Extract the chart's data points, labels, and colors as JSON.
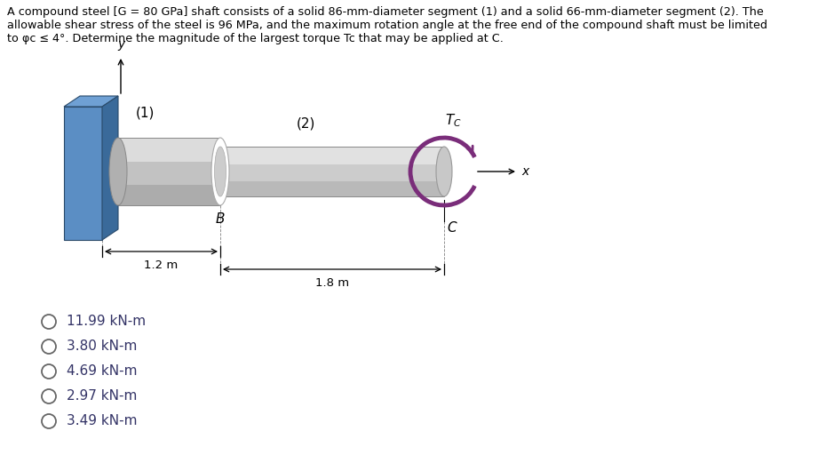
{
  "title_line1": "A compound steel [G = 80 GPa] shaft consists of a solid 86-mm-diameter segment (1) and a solid 66-mm-diameter segment (2). The",
  "title_line2": "allowable shear stress of the steel is 96 MPa, and the maximum rotation angle at the free end of the compound shaft must be limited",
  "title_line3": "to φc ≤ 4°. Determine the magnitude of the largest torque Tc that may be applied at C.",
  "options": [
    "11.99 kN-m",
    "3.80 kN-m",
    "4.69 kN-m",
    "2.97 kN-m",
    "3.49 kN-m"
  ],
  "wall_color_front": "#5b8ec4",
  "wall_color_top": "#6fa0d4",
  "wall_color_side": "#3a6a9a",
  "shaft1_body": "#c2c2c2",
  "shaft1_highlight": "#e8e8e8",
  "shaft1_shadow": "#989898",
  "shaft1_end": "#b0b0b0",
  "shaft2_body": "#cccccc",
  "shaft2_highlight": "#ebebeb",
  "shaft2_shadow": "#a8a8a8",
  "shaft2_end": "#c0c0c0",
  "junction_ring": "#e0e0e0",
  "arrow_color": "#7a2d7a",
  "bg_color": "#ffffff",
  "text_color": "#000000",
  "dim_color": "#333333",
  "opt_circle_color": "#666666",
  "opt_text_color": "#333366"
}
